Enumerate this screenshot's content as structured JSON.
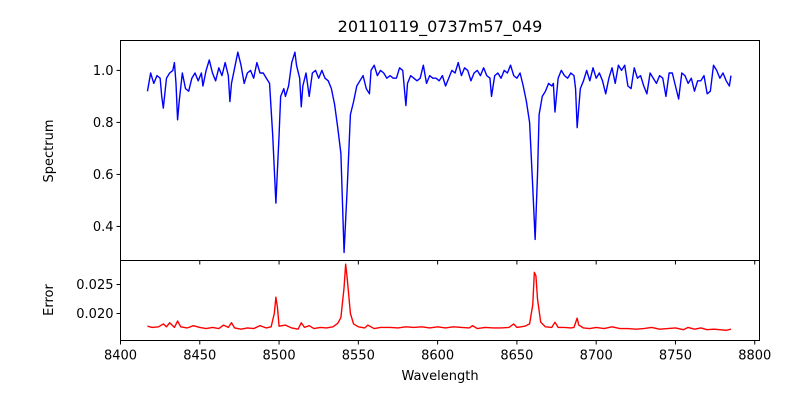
{
  "chart_data": [
    {
      "type": "line",
      "title": "20110119_0737m57_049",
      "xlabel": "",
      "ylabel": "Spectrum",
      "xlim": [
        8400,
        8803
      ],
      "ylim": [
        0.269,
        1.115
      ],
      "xticks": [
        8400,
        8450,
        8500,
        8550,
        8600,
        8650,
        8700,
        8750,
        8800
      ],
      "yticks": [
        0.4,
        0.6,
        0.8,
        1.0
      ],
      "ytick_labels": [
        "0.4",
        "0.6",
        "0.8",
        "1.0"
      ],
      "grid": false,
      "color": "#0000ff",
      "series": [
        {
          "name": "Spectrum",
          "x": [
            8417,
            8419,
            8421,
            8423,
            8425,
            8426,
            8427,
            8429,
            8431,
            8433,
            8434,
            8435,
            8436,
            8437,
            8439,
            8441,
            8443,
            8445,
            8447,
            8449,
            8451,
            8452,
            8454,
            8456,
            8458,
            8460,
            8462,
            8464,
            8466,
            8468,
            8469,
            8470,
            8472,
            8474,
            8476,
            8478,
            8480,
            8482,
            8484,
            8486,
            8488,
            8490,
            8492,
            8494,
            8496,
            8498,
            8500,
            8501,
            8503,
            8504,
            8506,
            8508,
            8510,
            8511,
            8513,
            8514,
            8515,
            8517,
            8519,
            8521,
            8523,
            8525,
            8527,
            8529,
            8531,
            8533,
            8535,
            8537,
            8539,
            8541,
            8543,
            8545,
            8547,
            8549,
            8551,
            8553,
            8555,
            8557,
            8558,
            8560,
            8562,
            8564,
            8566,
            8568,
            8570,
            8572,
            8574,
            8576,
            8578,
            8580,
            8581,
            8583,
            8585,
            8587,
            8589,
            8591,
            8593,
            8595,
            8597,
            8599,
            8601,
            8603,
            8605,
            8607,
            8609,
            8611,
            8613,
            8615,
            8617,
            8619,
            8621,
            8623,
            8625,
            8627,
            8629,
            8631,
            8633,
            8634,
            8636,
            8638,
            8640,
            8642,
            8644,
            8646,
            8648,
            8650,
            8652,
            8654,
            8656,
            8658,
            8660,
            8661.5,
            8663,
            8664,
            8666,
            8668,
            8670,
            8672,
            8673,
            8674,
            8676,
            8678,
            8680,
            8682,
            8684,
            8686,
            8687,
            8688,
            8690,
            8692,
            8694,
            8696,
            8698,
            8700,
            8702,
            8704,
            8706,
            8708,
            8710,
            8712,
            8714,
            8716,
            8718,
            8720,
            8722,
            8724,
            8726,
            8728,
            8730,
            8732,
            8734,
            8736,
            8738,
            8740,
            8742,
            8744,
            8746,
            8748,
            8750,
            8752,
            8754,
            8756,
            8758,
            8760,
            8762,
            8764,
            8766,
            8768,
            8770,
            8772,
            8774,
            8776,
            8778,
            8780,
            8782,
            8784,
            8785
          ],
          "y": [
            0.92,
            0.99,
            0.95,
            0.98,
            0.97,
            0.9,
            0.855,
            0.97,
            0.99,
            1.0,
            1.03,
            0.95,
            0.81,
            0.88,
            0.99,
            0.93,
            0.92,
            0.97,
            0.99,
            0.96,
            0.99,
            0.94,
            1.0,
            1.04,
            0.99,
            0.96,
            1.01,
            0.98,
            1.03,
            0.98,
            0.88,
            0.95,
            1.01,
            1.07,
            1.02,
            0.95,
            0.99,
            1.0,
            0.97,
            1.03,
            0.99,
            0.99,
            0.97,
            0.95,
            0.75,
            0.49,
            0.75,
            0.9,
            0.93,
            0.9,
            0.94,
            1.03,
            1.07,
            1.02,
            0.97,
            0.86,
            0.94,
            0.99,
            0.9,
            0.99,
            1.0,
            0.97,
            1.0,
            0.97,
            0.96,
            0.93,
            0.87,
            0.78,
            0.68,
            0.3,
            0.55,
            0.83,
            0.88,
            0.94,
            0.96,
            0.98,
            0.93,
            0.91,
            1.0,
            1.02,
            0.98,
            1.0,
            0.99,
            0.97,
            0.98,
            0.97,
            0.97,
            1.01,
            1.0,
            0.865,
            0.95,
            0.98,
            0.97,
            0.96,
            0.97,
            1.02,
            0.95,
            0.98,
            0.97,
            0.97,
            0.96,
            0.98,
            0.94,
            0.97,
            1.0,
            0.99,
            1.03,
            0.98,
            1.01,
            1.0,
            0.96,
            0.99,
            1.0,
            0.98,
            1.01,
            0.98,
            0.97,
            0.9,
            0.98,
            0.99,
            0.97,
            1.0,
            0.99,
            1.02,
            0.98,
            0.97,
            0.99,
            0.94,
            0.88,
            0.8,
            0.55,
            0.35,
            0.6,
            0.83,
            0.9,
            0.92,
            0.95,
            0.94,
            0.95,
            0.84,
            0.97,
            1.0,
            0.98,
            0.97,
            0.99,
            0.98,
            0.93,
            0.78,
            0.93,
            0.96,
            1.0,
            0.96,
            1.01,
            0.97,
            0.99,
            0.96,
            0.91,
            0.97,
            1.01,
            0.95,
            1.02,
            1.0,
            1.02,
            0.94,
            0.93,
            1.01,
            0.97,
            0.98,
            0.94,
            0.91,
            0.99,
            0.97,
            0.95,
            0.98,
            0.97,
            0.9,
            0.99,
            0.99,
            0.94,
            0.89,
            0.99,
            0.98,
            0.95,
            0.97,
            0.92,
            0.96,
            0.96,
            0.98,
            0.91,
            0.92,
            1.02,
            1.0,
            0.97,
            0.99,
            0.96,
            0.94,
            0.98
          ]
        }
      ]
    },
    {
      "type": "line",
      "xlabel": "Wavelength",
      "ylabel": "Error",
      "xlim": [
        8400,
        8803
      ],
      "ylim": [
        0.01534,
        0.02914
      ],
      "xticks": [
        8400,
        8450,
        8500,
        8550,
        8600,
        8650,
        8700,
        8750,
        8800
      ],
      "xtick_labels": [
        "8400",
        "8450",
        "8500",
        "8550",
        "8600",
        "8650",
        "8700",
        "8750",
        "8800"
      ],
      "yticks": [
        0.02,
        0.025
      ],
      "ytick_labels": [
        "0.020",
        "0.025"
      ],
      "grid": false,
      "color": "#ff0000",
      "series": [
        {
          "name": "Error",
          "x": [
            8417,
            8420,
            8424,
            8427,
            8429,
            8431,
            8434,
            8436,
            8438,
            8442,
            8446,
            8450,
            8454,
            8458,
            8462,
            8465,
            8468,
            8470,
            8472,
            8476,
            8480,
            8484,
            8488,
            8492,
            8495,
            8497,
            8498,
            8499,
            8500,
            8504,
            8508,
            8512,
            8514,
            8516,
            8519,
            8522,
            8526,
            8530,
            8534,
            8537,
            8539,
            8541,
            8542,
            8543,
            8545,
            8547,
            8550,
            8554,
            8556,
            8560,
            8564,
            8570,
            8575,
            8580,
            8585,
            8590,
            8595,
            8600,
            8605,
            8610,
            8615,
            8620,
            8622,
            8625,
            8630,
            8635,
            8640,
            8645,
            8648,
            8650,
            8655,
            8658,
            8660,
            8661,
            8662,
            8663,
            8665,
            8668,
            8672,
            8674,
            8676,
            8680,
            8684,
            8686,
            8688,
            8689,
            8692,
            8696,
            8700,
            8705,
            8710,
            8715,
            8720,
            8725,
            8730,
            8735,
            8740,
            8745,
            8750,
            8755,
            8758,
            8762,
            8766,
            8770,
            8774,
            8778,
            8782,
            8785
          ],
          "y": [
            0.0178,
            0.0176,
            0.0177,
            0.0182,
            0.0177,
            0.0184,
            0.0176,
            0.0187,
            0.0177,
            0.0175,
            0.0179,
            0.0176,
            0.0174,
            0.0176,
            0.0174,
            0.018,
            0.0176,
            0.0184,
            0.0175,
            0.0173,
            0.0175,
            0.0174,
            0.0179,
            0.0175,
            0.0177,
            0.02,
            0.0228,
            0.021,
            0.0178,
            0.018,
            0.0175,
            0.0173,
            0.0184,
            0.0176,
            0.0179,
            0.0174,
            0.0176,
            0.0175,
            0.0177,
            0.0183,
            0.0193,
            0.0245,
            0.0285,
            0.026,
            0.02,
            0.0182,
            0.0177,
            0.0175,
            0.018,
            0.0174,
            0.0176,
            0.0176,
            0.0175,
            0.0177,
            0.0176,
            0.0177,
            0.0175,
            0.0177,
            0.0175,
            0.0177,
            0.0176,
            0.0175,
            0.0179,
            0.0174,
            0.0176,
            0.0175,
            0.0175,
            0.0176,
            0.0182,
            0.0176,
            0.0178,
            0.0182,
            0.0215,
            0.0271,
            0.0265,
            0.0225,
            0.0185,
            0.0177,
            0.0176,
            0.0185,
            0.0176,
            0.0176,
            0.0175,
            0.0176,
            0.0192,
            0.018,
            0.0175,
            0.0174,
            0.0176,
            0.0174,
            0.0177,
            0.0174,
            0.0174,
            0.0173,
            0.0174,
            0.0176,
            0.0173,
            0.0174,
            0.0175,
            0.0172,
            0.0176,
            0.0173,
            0.0175,
            0.0172,
            0.0173,
            0.0172,
            0.0171,
            0.0173
          ]
        }
      ]
    }
  ]
}
